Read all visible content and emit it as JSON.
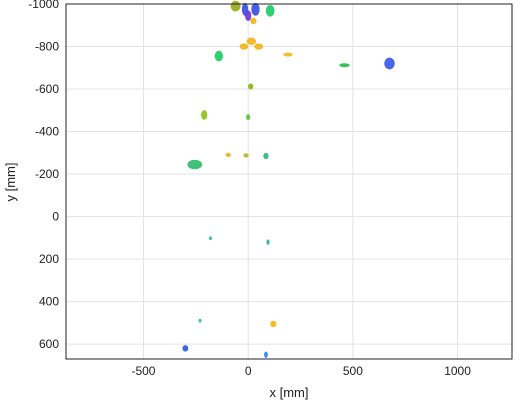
{
  "chart_data": {
    "type": "scatter",
    "title": "",
    "xlabel": "x [mm]",
    "ylabel": "y [mm]",
    "xlim": [
      -870,
      1260
    ],
    "ylim": [
      -1000,
      670
    ],
    "y_inverted": true,
    "grid": true,
    "xticks": [
      -500,
      0,
      500,
      1000
    ],
    "yticks": [
      -1000,
      -800,
      -600,
      -400,
      -200,
      0,
      200,
      400,
      600
    ],
    "xtick_labels": [
      "-500",
      "0",
      "500",
      "1000"
    ],
    "ytick_labels": [
      "-1000",
      "-800",
      "-600",
      "-400",
      "-200",
      "0",
      "200",
      "400",
      "600"
    ],
    "points": [
      {
        "x": -60,
        "y": -990,
        "w": 48,
        "h": 50,
        "color": "#9aaa17"
      },
      {
        "x": -15,
        "y": -975,
        "w": 30,
        "h": 60,
        "color": "#3b4fe0"
      },
      {
        "x": 35,
        "y": -975,
        "w": 40,
        "h": 60,
        "color": "#3b4fe0"
      },
      {
        "x": 0,
        "y": -945,
        "w": 30,
        "h": 50,
        "color": "#6a3ad8"
      },
      {
        "x": 25,
        "y": -920,
        "w": 30,
        "h": 30,
        "color": "#f3b51c"
      },
      {
        "x": 105,
        "y": -968,
        "w": 42,
        "h": 55,
        "color": "#1fcb67"
      },
      {
        "x": 15,
        "y": -825,
        "w": 45,
        "h": 35,
        "color": "#f3b51c"
      },
      {
        "x": -20,
        "y": -800,
        "w": 42,
        "h": 30,
        "color": "#f3b51c"
      },
      {
        "x": 50,
        "y": -800,
        "w": 42,
        "h": 30,
        "color": "#f3b51c"
      },
      {
        "x": -140,
        "y": -755,
        "w": 40,
        "h": 50,
        "color": "#1fcb67"
      },
      {
        "x": 190,
        "y": -762,
        "w": 45,
        "h": 18,
        "color": "#f3b51c"
      },
      {
        "x": 460,
        "y": -712,
        "w": 50,
        "h": 18,
        "color": "#1fbd4e"
      },
      {
        "x": 675,
        "y": -720,
        "w": 50,
        "h": 55,
        "color": "#3b5ae8"
      },
      {
        "x": 12,
        "y": -612,
        "w": 25,
        "h": 28,
        "color": "#88b50f"
      },
      {
        "x": -210,
        "y": -478,
        "w": 30,
        "h": 45,
        "color": "#8fc118"
      },
      {
        "x": 0,
        "y": -468,
        "w": 20,
        "h": 28,
        "color": "#5cc23a"
      },
      {
        "x": -95,
        "y": -290,
        "w": 25,
        "h": 20,
        "color": "#e3b41a"
      },
      {
        "x": -10,
        "y": -288,
        "w": 25,
        "h": 20,
        "color": "#b5b91a"
      },
      {
        "x": 85,
        "y": -285,
        "w": 25,
        "h": 30,
        "color": "#2fb67a"
      },
      {
        "x": -255,
        "y": -245,
        "w": 70,
        "h": 45,
        "color": "#2dbd6b"
      },
      {
        "x": -180,
        "y": 102,
        "w": 15,
        "h": 18,
        "color": "#26c39a"
      },
      {
        "x": 95,
        "y": 120,
        "w": 15,
        "h": 25,
        "color": "#25b67d"
      },
      {
        "x": -230,
        "y": 490,
        "w": 15,
        "h": 18,
        "color": "#2bc4a2"
      },
      {
        "x": 120,
        "y": 505,
        "w": 30,
        "h": 30,
        "color": "#f3b51c"
      },
      {
        "x": -300,
        "y": 620,
        "w": 28,
        "h": 30,
        "color": "#2b59e0"
      },
      {
        "x": 85,
        "y": 650,
        "w": 18,
        "h": 30,
        "color": "#1f8be8"
      }
    ]
  }
}
